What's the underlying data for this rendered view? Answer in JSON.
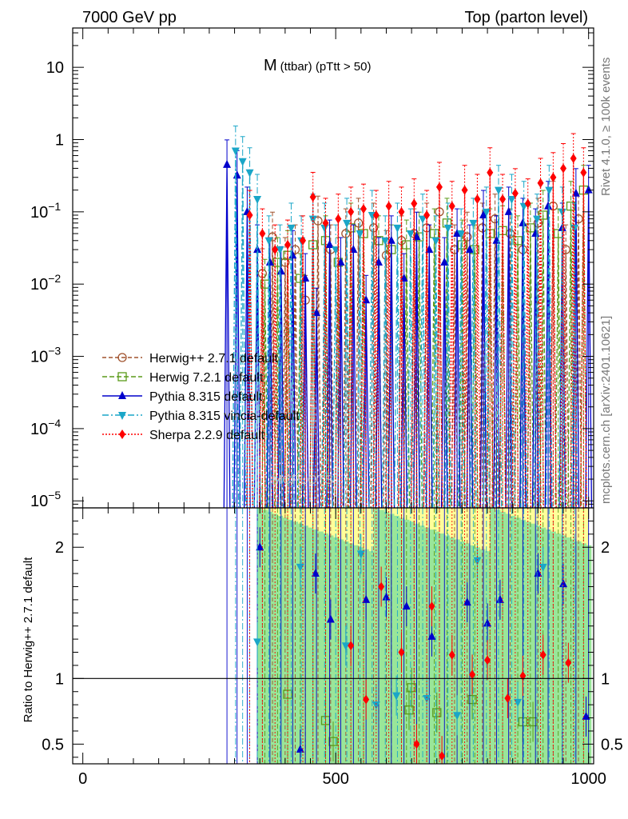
{
  "header": {
    "left": "7000 GeV pp",
    "right": "Top (parton level)"
  },
  "side_text": {
    "rivet": "Rivet 4.1.0, ≥ 100k events",
    "mcplots": "mcplots.cern.ch [arXiv:2401.10621]"
  },
  "watermark": "MCPLOTS",
  "chart_data": {
    "type": "line",
    "title_main": "M",
    "title_sub": "(ttbar) (pTtt > 50)",
    "x_ticks": [
      "0",
      "500",
      "1000"
    ],
    "xlim": [
      -20,
      1010
    ],
    "main_panel": {
      "scale": "log",
      "ylim": [
        8e-06,
        35
      ],
      "y_ticks": [
        {
          "v": 10,
          "base": "10",
          "exp": ""
        },
        {
          "v": 1,
          "base": "1",
          "exp": ""
        },
        {
          "v": 0.1,
          "base": "10",
          "exp": "−1"
        },
        {
          "v": 0.01,
          "base": "10",
          "exp": "−2"
        },
        {
          "v": 0.001,
          "base": "10",
          "exp": "−3"
        },
        {
          "v": 0.0001,
          "base": "10",
          "exp": "−4"
        },
        {
          "v": 1e-05,
          "base": "10",
          "exp": "−5"
        }
      ]
    },
    "ratio_panel": {
      "ylabel": "Ratio to Herwig++ 2.7.1 default",
      "ylim": [
        0.35,
        2.3
      ],
      "y_ticks": [
        "0.5",
        "1",
        "2"
      ],
      "y_tick_values": [
        0.5,
        1,
        2
      ],
      "reference": 1
    },
    "series": [
      {
        "name": "Herwig++ 2.7.1 default",
        "color": "#a0522d",
        "marker": "circle-open",
        "dash": "5,3",
        "points": [
          [
            355,
            0.014
          ],
          [
            375,
            0.045
          ],
          [
            400,
            0.02
          ],
          [
            420,
            0.03
          ],
          [
            440,
            0.006
          ],
          [
            465,
            0.075
          ],
          [
            490,
            0.03
          ],
          [
            520,
            0.05
          ],
          [
            545,
            0.07
          ],
          [
            575,
            0.06
          ],
          [
            600,
            0.025
          ],
          [
            630,
            0.04
          ],
          [
            655,
            0.05
          ],
          [
            680,
            0.06
          ],
          [
            705,
            0.1
          ],
          [
            735,
            0.03
          ],
          [
            760,
            0.045
          ],
          [
            790,
            0.06
          ],
          [
            815,
            0.08
          ],
          [
            845,
            0.05
          ],
          [
            870,
            0.03
          ],
          [
            900,
            0.07
          ],
          [
            930,
            0.12
          ],
          [
            955,
            0.03
          ],
          [
            980,
            0.08
          ]
        ],
        "ratio": []
      },
      {
        "name": "Herwig 7.2.1 default",
        "color": "#5a9a1a",
        "marker": "square-open",
        "dash": "6,3",
        "points": [
          [
            360,
            0.01
          ],
          [
            385,
            0.02
          ],
          [
            405,
            0.025
          ],
          [
            430,
            0.012
          ],
          [
            455,
            0.035
          ],
          [
            480,
            0.04
          ],
          [
            505,
            0.02
          ],
          [
            530,
            0.06
          ],
          [
            555,
            0.05
          ],
          [
            585,
            0.04
          ],
          [
            610,
            0.03
          ],
          [
            640,
            0.035
          ],
          [
            665,
            0.045
          ],
          [
            695,
            0.05
          ],
          [
            720,
            0.07
          ],
          [
            750,
            0.035
          ],
          [
            775,
            0.03
          ],
          [
            805,
            0.05
          ],
          [
            830,
            0.055
          ],
          [
            860,
            0.04
          ],
          [
            885,
            0.06
          ],
          [
            910,
            0.09
          ],
          [
            940,
            0.05
          ],
          [
            965,
            0.12
          ],
          [
            990,
            0.2
          ]
        ],
        "ratio": [
          [
            405,
            0.88
          ],
          [
            480,
            0.68
          ],
          [
            495,
            0.52
          ],
          [
            645,
            0.76
          ],
          [
            650,
            0.93
          ],
          [
            700,
            0.74
          ],
          [
            770,
            0.84
          ],
          [
            870,
            0.67
          ],
          [
            890,
            0.67
          ]
        ]
      },
      {
        "name": "Pythia 8.315 default",
        "color": "#0000cc",
        "marker": "triangle-up",
        "dash": "",
        "points": [
          [
            285,
            0.45
          ],
          [
            305,
            0.32
          ],
          [
            325,
            0.1
          ],
          [
            345,
            0.03
          ],
          [
            370,
            0.02
          ],
          [
            392,
            0.015
          ],
          [
            415,
            0.025
          ],
          [
            440,
            0.012
          ],
          [
            462,
            0.004
          ],
          [
            488,
            0.035
          ],
          [
            510,
            0.02
          ],
          [
            535,
            0.03
          ],
          [
            560,
            0.006
          ],
          [
            585,
            0.02
          ],
          [
            610,
            0.04
          ],
          [
            635,
            0.012
          ],
          [
            660,
            0.045
          ],
          [
            685,
            0.03
          ],
          [
            715,
            0.02
          ],
          [
            740,
            0.05
          ],
          [
            765,
            0.03
          ],
          [
            792,
            0.09
          ],
          [
            818,
            0.04
          ],
          [
            842,
            0.1
          ],
          [
            870,
            0.07
          ],
          [
            895,
            0.05
          ],
          [
            920,
            0.12
          ],
          [
            948,
            0.06
          ],
          [
            975,
            0.18
          ],
          [
            1000,
            0.2
          ]
        ],
        "ratio": [
          [
            350,
            2.0
          ],
          [
            430,
            0.46
          ],
          [
            460,
            1.8
          ],
          [
            490,
            1.45
          ],
          [
            560,
            1.6
          ],
          [
            600,
            1.62
          ],
          [
            640,
            1.55
          ],
          [
            690,
            1.32
          ],
          [
            760,
            1.58
          ],
          [
            800,
            1.42
          ],
          [
            825,
            1.6
          ],
          [
            900,
            1.8
          ],
          [
            950,
            1.72
          ],
          [
            995,
            0.71
          ]
        ]
      },
      {
        "name": "Pythia 8.315 vincia-default",
        "color": "#1aa6c8",
        "marker": "triangle-down",
        "dash": "8,3,2,3",
        "points": [
          [
            302,
            0.7
          ],
          [
            316,
            0.5
          ],
          [
            330,
            0.35
          ],
          [
            345,
            0.15
          ],
          [
            368,
            0.04
          ],
          [
            390,
            0.03
          ],
          [
            412,
            0.06
          ],
          [
            432,
            0.04
          ],
          [
            455,
            0.08
          ],
          [
            478,
            0.06
          ],
          [
            500,
            0.03
          ],
          [
            522,
            0.07
          ],
          [
            548,
            0.05
          ],
          [
            572,
            0.09
          ],
          [
            598,
            0.04
          ],
          [
            622,
            0.06
          ],
          [
            648,
            0.05
          ],
          [
            672,
            0.08
          ],
          [
            698,
            0.04
          ],
          [
            722,
            0.06
          ],
          [
            748,
            0.05
          ],
          [
            772,
            0.07
          ],
          [
            798,
            0.1
          ],
          [
            822,
            0.2
          ],
          [
            848,
            0.15
          ],
          [
            872,
            0.12
          ],
          [
            898,
            0.08
          ],
          [
            922,
            0.2
          ],
          [
            948,
            0.1
          ],
          [
            972,
            0.06
          ]
        ],
        "ratio": [
          [
            345,
            1.28
          ],
          [
            430,
            1.85
          ],
          [
            520,
            1.25
          ],
          [
            550,
            1.95
          ],
          [
            580,
            0.8
          ],
          [
            620,
            0.87
          ],
          [
            680,
            0.85
          ],
          [
            740,
            0.72
          ],
          [
            780,
            1.9
          ],
          [
            860,
            0.82
          ],
          [
            910,
            1.85
          ]
        ]
      },
      {
        "name": "Sherpa 2.2.9 default",
        "color": "#ff0000",
        "marker": "diamond",
        "dash": "2,2",
        "points": [
          [
            330,
            0.09
          ],
          [
            355,
            0.05
          ],
          [
            380,
            0.03
          ],
          [
            405,
            0.035
          ],
          [
            435,
            0.04
          ],
          [
            455,
            0.16
          ],
          [
            480,
            0.07
          ],
          [
            505,
            0.08
          ],
          [
            530,
            0.1
          ],
          [
            555,
            0.11
          ],
          [
            580,
            0.09
          ],
          [
            605,
            0.12
          ],
          [
            630,
            0.1
          ],
          [
            655,
            0.13
          ],
          [
            680,
            0.09
          ],
          [
            705,
            0.22
          ],
          [
            730,
            0.12
          ],
          [
            755,
            0.2
          ],
          [
            780,
            0.15
          ],
          [
            805,
            0.35
          ],
          [
            830,
            0.15
          ],
          [
            855,
            0.18
          ],
          [
            880,
            0.13
          ],
          [
            905,
            0.25
          ],
          [
            930,
            0.3
          ],
          [
            950,
            0.4
          ],
          [
            970,
            0.55
          ],
          [
            990,
            0.35
          ]
        ],
        "ratio": [
          [
            530,
            1.25
          ],
          [
            560,
            0.84
          ],
          [
            590,
            1.7
          ],
          [
            630,
            1.2
          ],
          [
            660,
            0.5
          ],
          [
            690,
            1.55
          ],
          [
            710,
            0.41
          ],
          [
            730,
            1.18
          ],
          [
            770,
            1.03
          ],
          [
            800,
            1.14
          ],
          [
            840,
            0.85
          ],
          [
            870,
            1.02
          ],
          [
            910,
            1.18
          ],
          [
            960,
            1.12
          ]
        ]
      }
    ]
  }
}
